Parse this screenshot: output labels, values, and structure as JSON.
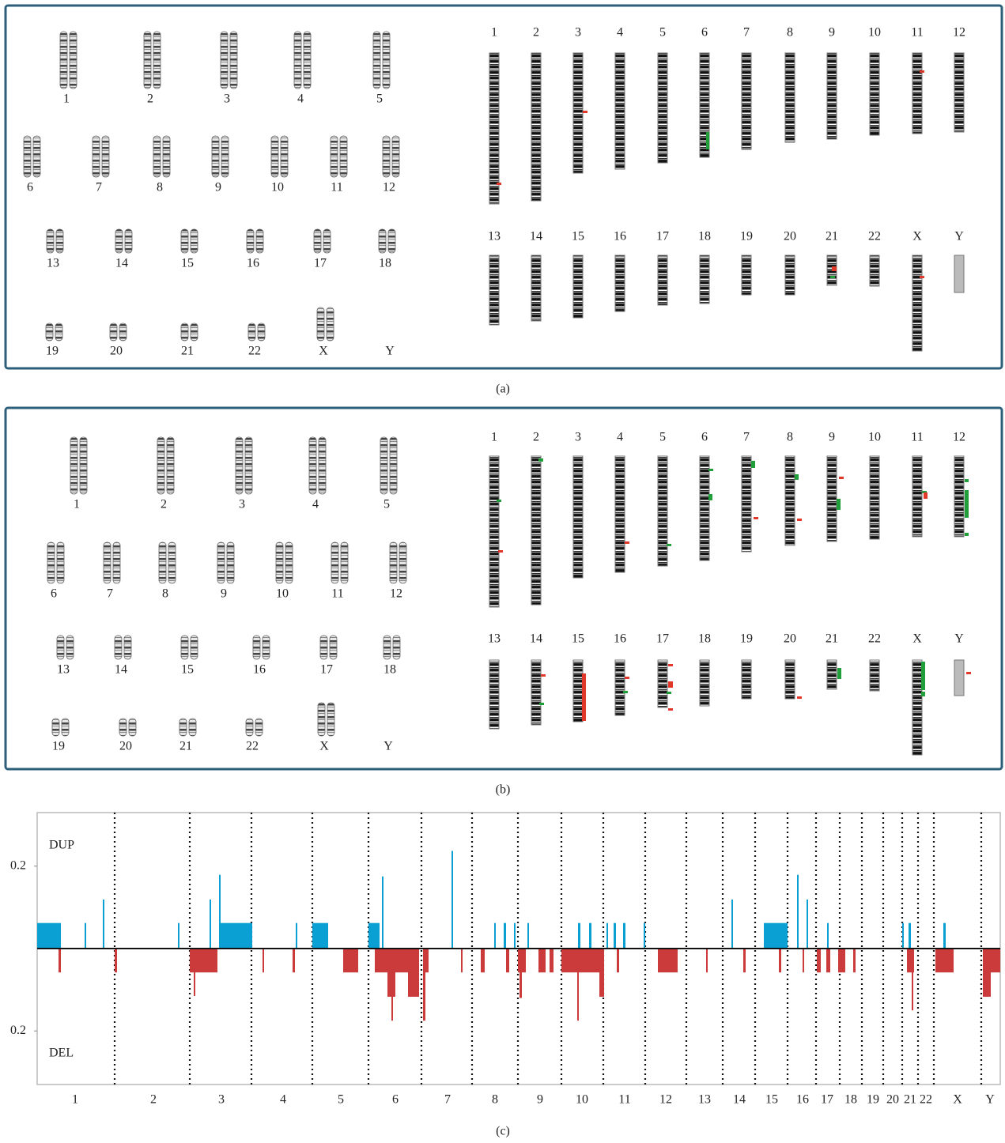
{
  "panel_a": {
    "karyotype_labels": [
      "1",
      "2",
      "3",
      "4",
      "5",
      "6",
      "7",
      "8",
      "9",
      "10",
      "11",
      "12",
      "13",
      "14",
      "15",
      "16",
      "17",
      "18",
      "19",
      "20",
      "21",
      "22",
      "X",
      "Y"
    ],
    "ideogram_labels": [
      "1",
      "2",
      "3",
      "4",
      "5",
      "6",
      "7",
      "8",
      "9",
      "10",
      "11",
      "12",
      "13",
      "14",
      "15",
      "16",
      "17",
      "18",
      "19",
      "20",
      "21",
      "22",
      "X",
      "Y"
    ],
    "caption": "(a)"
  },
  "panel_b": {
    "karyotype_labels": [
      "1",
      "2",
      "3",
      "4",
      "5",
      "6",
      "7",
      "8",
      "9",
      "10",
      "11",
      "12",
      "13",
      "14",
      "15",
      "16",
      "17",
      "18",
      "19",
      "20",
      "21",
      "22",
      "X",
      "Y"
    ],
    "ideogram_labels": [
      "1",
      "2",
      "3",
      "4",
      "5",
      "6",
      "7",
      "8",
      "9",
      "10",
      "11",
      "12",
      "13",
      "14",
      "15",
      "16",
      "17",
      "18",
      "19",
      "20",
      "21",
      "22",
      "X",
      "Y"
    ],
    "caption": "(b)"
  },
  "chart_data": {
    "type": "bar",
    "categories": [
      "1",
      "2",
      "3",
      "4",
      "5",
      "6",
      "7",
      "8",
      "9",
      "10",
      "11",
      "12",
      "13",
      "14",
      "15",
      "16",
      "17",
      "18",
      "19",
      "20",
      "21",
      "22",
      "X",
      "Y"
    ],
    "annotations": [
      "DUP",
      "DEL"
    ],
    "caption": "(c)",
    "xlim": [
      0,
      1218
    ],
    "ylim": [
      -0.33,
      0.33
    ],
    "yticks": [
      {
        "value": 0.2,
        "label": "0.2"
      },
      {
        "value": -0.2,
        "label": "0.2"
      }
    ],
    "series": [
      {
        "color": "#0aa0d4",
        "x": [
          0,
          60,
          83,
          178,
          218,
          230,
          232,
          327,
          348,
          419,
          436,
          524,
          578,
          590,
          603,
          620,
          684,
          698,
          720,
          729,
          741,
          767,
          878,
          919,
          961,
          973,
          999,
          1094,
          1102,
          1146
        ],
        "x_end": [
          30,
          62,
          85,
          180,
          220,
          232,
          272,
          329,
          368,
          433,
          438,
          526,
          580,
          593,
          605,
          622,
          687,
          701,
          722,
          732,
          744,
          769,
          880,
          949,
          963,
          975,
          1001,
          1096,
          1105,
          1149
        ],
        "values": [
          0.062,
          0.062,
          0.119,
          0.062,
          0.119,
          0.179,
          0.062,
          0.062,
          0.062,
          0.062,
          0.175,
          0.237,
          0.062,
          0.062,
          0.062,
          0.062,
          0.062,
          0.062,
          0.062,
          0.062,
          0.062,
          0.062,
          0.119,
          0.062,
          0.179,
          0.119,
          0.062,
          0.062,
          0.062,
          0.062
        ]
      },
      {
        "color": "#cc3b3b",
        "x": [
          27,
          98,
          193,
          198,
          285,
          323,
          387,
          403,
          427,
          430,
          443,
          469,
          448,
          488,
          488,
          536,
          561,
          593,
          608,
          610,
          634,
          648,
          663,
          683,
          711,
          733,
          785,
          846,
          893,
          938,
          968,
          986,
          998,
          1013,
          1032,
          1100,
          1106,
          1136,
          1196,
          1196
        ],
        "x_end": [
          30,
          101,
          228,
          200,
          287,
          326,
          403,
          406,
          430,
          469,
          453,
          483,
          450,
          491,
          495,
          538,
          566,
          597,
          618,
          613,
          643,
          653,
          715,
          685,
          717,
          736,
          810,
          848,
          896,
          941,
          970,
          991,
          1003,
          1022,
          1035,
          1109,
          1108,
          1159,
          1218,
          1206
        ],
        "values": [
          -0.058,
          -0.058,
          -0.058,
          -0.115,
          -0.058,
          -0.058,
          -0.058,
          -0.058,
          -0.058,
          -0.058,
          -0.117,
          -0.117,
          -0.175,
          -0.175,
          -0.058,
          -0.058,
          -0.058,
          -0.058,
          -0.058,
          -0.12,
          -0.058,
          -0.058,
          -0.058,
          -0.175,
          -0.117,
          -0.058,
          -0.058,
          -0.058,
          -0.058,
          -0.058,
          -0.058,
          -0.058,
          -0.058,
          -0.058,
          -0.058,
          -0.058,
          -0.15,
          -0.058,
          -0.058,
          -0.117
        ]
      }
    ]
  }
}
